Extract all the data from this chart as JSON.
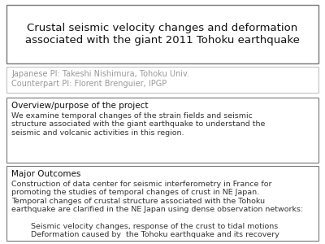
{
  "title_line1": "Crustal seismic velocity changes and deformation",
  "title_line2": "associated with the giant 2011 Tohoku earthquake",
  "pi_line1": "Japanese PI: Takeshi Nishimura, Tohoku Univ.",
  "pi_line2": "Counterpart PI: Florent Brenguier, IPGP",
  "overview_header": "Overview/purpose of the project",
  "overview_body": "We examine temporal changes of the strain fields and seismic\nstructure associated with the giant earthquake to understand the\nseismic and volcanic activities in this region.",
  "outcomes_header": "Major Outcomes",
  "outcomes_body1": "Construction of data center for seismic interferometry in France for\npromoting the studies of temporal changes of crust in NE Japan.\nTemporal changes of crustal structure associated with the Tohoku\nearthquake are clarified in the NE Japan using dense observation networks:",
  "outcomes_body2": "        Seismic velocity changes, response of the crust to tidal motions\n        Deformation caused by  the Tohoku earthquake and its recovery",
  "bg_color": "#ffffff",
  "title_box_edge": "#777777",
  "pi_box_edge": "#bbbbbb",
  "pi_text_color": "#999999",
  "body_text_color": "#333333",
  "header_text_color": "#111111",
  "title_fontsize": 9.5,
  "pi_fontsize": 7.0,
  "header_fontsize": 7.5,
  "body_fontsize": 6.8
}
